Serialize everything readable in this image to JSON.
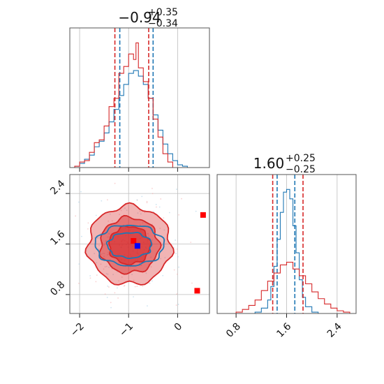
{
  "chart_data": [
    {
      "type": "histogram",
      "panel": "top-left",
      "title": {
        "value": "−0.94",
        "plus": "+0.35",
        "minus": "−0.34"
      },
      "xlim": [
        -2.2,
        0.65
      ],
      "xticks": [
        -2,
        -1,
        0
      ],
      "x_tick_labels": [],
      "grid": true,
      "series": [
        {
          "color": "#1f77b4",
          "bins": [
            [
              -2.2,
              0
            ],
            [
              -2.1,
              0.01
            ],
            [
              -2.0,
              0.03
            ],
            [
              -1.9,
              0.06
            ],
            [
              -1.8,
              0.09
            ],
            [
              -1.7,
              0.15
            ],
            [
              -1.6,
              0.19
            ],
            [
              -1.5,
              0.25
            ],
            [
              -1.4,
              0.33
            ],
            [
              -1.3,
              0.42
            ],
            [
              -1.2,
              0.52
            ],
            [
              -1.1,
              0.6
            ],
            [
              -1.0,
              0.68
            ],
            [
              -0.9,
              0.7
            ],
            [
              -0.8,
              0.66
            ],
            [
              -0.7,
              0.6
            ],
            [
              -0.6,
              0.5
            ],
            [
              -0.5,
              0.38
            ],
            [
              -0.4,
              0.27
            ],
            [
              -0.3,
              0.17
            ],
            [
              -0.2,
              0.1
            ],
            [
              -0.1,
              0.05
            ],
            [
              0.0,
              0.02
            ],
            [
              0.1,
              0.01
            ],
            [
              0.2,
              0.0
            ]
          ],
          "quantile_lines": [
            -1.18,
            -0.5
          ]
        },
        {
          "color": "#d62728",
          "bins": [
            [
              -2.2,
              0
            ],
            [
              -2.1,
              0.01
            ],
            [
              -2.0,
              0.04
            ],
            [
              -1.9,
              0.05
            ],
            [
              -1.8,
              0.11
            ],
            [
              -1.7,
              0.18
            ],
            [
              -1.6,
              0.2
            ],
            [
              -1.5,
              0.3
            ],
            [
              -1.4,
              0.44
            ],
            [
              -1.3,
              0.5
            ],
            [
              -1.2,
              0.68
            ],
            [
              -1.1,
              0.73
            ],
            [
              -1.0,
              0.82
            ],
            [
              -0.9,
              0.78
            ],
            [
              -0.85,
              0.9
            ],
            [
              -0.8,
              0.72
            ],
            [
              -0.7,
              0.62
            ],
            [
              -0.6,
              0.5
            ],
            [
              -0.5,
              0.35
            ],
            [
              -0.4,
              0.22
            ],
            [
              -0.3,
              0.1
            ],
            [
              -0.2,
              0.04
            ],
            [
              -0.1,
              0.0
            ]
          ],
          "quantile_lines": [
            -1.28,
            -0.59
          ]
        }
      ]
    },
    {
      "type": "histogram",
      "panel": "bottom-right",
      "title": {
        "value": "1.60",
        "plus": "+0.25",
        "minus": "−0.25"
      },
      "xlim": [
        0.5,
        2.7
      ],
      "xticks": [
        0.8,
        1.6,
        2.4
      ],
      "x_tick_labels": [
        "0.8",
        "1.6",
        "2.4"
      ],
      "grid": true,
      "series": [
        {
          "color": "#1f77b4",
          "bins": [
            [
              1.0,
              0
            ],
            [
              1.1,
              0.01
            ],
            [
              1.2,
              0.04
            ],
            [
              1.3,
              0.1
            ],
            [
              1.35,
              0.2
            ],
            [
              1.4,
              0.35
            ],
            [
              1.45,
              0.55
            ],
            [
              1.5,
              0.75
            ],
            [
              1.55,
              0.9
            ],
            [
              1.6,
              0.92
            ],
            [
              1.65,
              0.85
            ],
            [
              1.7,
              0.65
            ],
            [
              1.75,
              0.45
            ],
            [
              1.8,
              0.25
            ],
            [
              1.85,
              0.12
            ],
            [
              1.9,
              0.05
            ],
            [
              2.0,
              0.01
            ],
            [
              2.1,
              0.0
            ]
          ],
          "quantile_lines": [
            1.45,
            1.73
          ]
        },
        {
          "color": "#d62728",
          "bins": [
            [
              0.8,
              0.01
            ],
            [
              0.9,
              0.03
            ],
            [
              1.0,
              0.06
            ],
            [
              1.1,
              0.1
            ],
            [
              1.2,
              0.17
            ],
            [
              1.3,
              0.24
            ],
            [
              1.4,
              0.3
            ],
            [
              1.5,
              0.36
            ],
            [
              1.6,
              0.38
            ],
            [
              1.7,
              0.33
            ],
            [
              1.8,
              0.28
            ],
            [
              1.9,
              0.22
            ],
            [
              2.0,
              0.16
            ],
            [
              2.1,
              0.11
            ],
            [
              2.2,
              0.07
            ],
            [
              2.3,
              0.04
            ],
            [
              2.4,
              0.02
            ],
            [
              2.5,
              0.01
            ],
            [
              2.6,
              0.0
            ]
          ],
          "quantile_lines": [
            1.38,
            1.86
          ]
        }
      ]
    },
    {
      "type": "scatter",
      "panel": "bottom-left",
      "xlim": [
        -2.2,
        0.65
      ],
      "ylim": [
        0.5,
        2.7
      ],
      "xticks": [
        -2,
        -1,
        0
      ],
      "x_tick_labels": [
        "−2",
        "−1",
        "0"
      ],
      "yticks": [
        0.8,
        1.6,
        2.4
      ],
      "y_tick_labels": [
        "0.8",
        "1.6",
        "2.4"
      ],
      "grid": true,
      "contours": [
        {
          "color": "#d62728",
          "fill": "#d62728",
          "level": 0.9,
          "rx": 0.85,
          "ry": 0.62
        },
        {
          "color": "#d62728",
          "fill": "#d62728",
          "level": 0.7,
          "rx": 0.6,
          "ry": 0.44
        },
        {
          "color": "#d62728",
          "fill": "#d62728",
          "level": 0.4,
          "rx": 0.42,
          "ry": 0.3
        },
        {
          "color": "#1f77b4",
          "fill": "none",
          "level": 0.7,
          "rx": 0.7,
          "ry": 0.32
        },
        {
          "color": "#1f77b4",
          "fill": "none",
          "level": 0.4,
          "rx": 0.45,
          "ry": 0.2
        }
      ],
      "contour_center": {
        "x": -0.98,
        "y": 1.58
      },
      "points": [
        {
          "x": 0.52,
          "y": 2.06,
          "color": "#ff0000"
        },
        {
          "x": 0.4,
          "y": 0.86,
          "color": "#ff0000"
        },
        {
          "x": -0.9,
          "y": 1.65,
          "color": "#ff0000"
        },
        {
          "x": -0.82,
          "y": 1.57,
          "color": "#0000ff"
        }
      ]
    }
  ]
}
